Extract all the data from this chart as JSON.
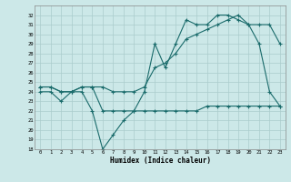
{
  "xlabel": "Humidex (Indice chaleur)",
  "x_ticks": [
    0,
    1,
    2,
    3,
    4,
    5,
    6,
    7,
    8,
    9,
    10,
    11,
    12,
    13,
    14,
    15,
    16,
    17,
    18,
    19,
    20,
    21,
    22,
    23
  ],
  "ylim": [
    18,
    33
  ],
  "xlim": [
    -0.5,
    23.5
  ],
  "yticks": [
    18,
    19,
    20,
    21,
    22,
    23,
    24,
    25,
    26,
    27,
    28,
    29,
    30,
    31,
    32
  ],
  "bg_color": "#cce8e8",
  "grid_color": "#aacccc",
  "line_color": "#1a6b6b",
  "line1_x": [
    0,
    1,
    2,
    3,
    4,
    5,
    6,
    7,
    8,
    9,
    10,
    11,
    12,
    13,
    14,
    15,
    16,
    17,
    18,
    19,
    20,
    21,
    22,
    23
  ],
  "line1_y": [
    24,
    24,
    23,
    24,
    24,
    22,
    18,
    19.5,
    21,
    22,
    24,
    29,
    26.5,
    29,
    31.5,
    31,
    31,
    32,
    32,
    31.5,
    31,
    29,
    24,
    22.5
  ],
  "line2_x": [
    0,
    1,
    2,
    3,
    4,
    5,
    6,
    7,
    8,
    9,
    10,
    11,
    12,
    13,
    14,
    15,
    16,
    17,
    18,
    19,
    20,
    21,
    22,
    23
  ],
  "line2_y": [
    24.5,
    24.5,
    24,
    24,
    24.5,
    24.5,
    24.5,
    24,
    24,
    24,
    24.5,
    26.5,
    27,
    28,
    29.5,
    30,
    30.5,
    31,
    31.5,
    32,
    31,
    31,
    31,
    29
  ],
  "line3_x": [
    0,
    1,
    2,
    3,
    4,
    5,
    6,
    7,
    8,
    9,
    10,
    11,
    12,
    13,
    14,
    15,
    16,
    17,
    18,
    19,
    20,
    21,
    22,
    23
  ],
  "line3_y": [
    24.5,
    24.5,
    24,
    24,
    24.5,
    24.5,
    22,
    22,
    22,
    22,
    22,
    22,
    22,
    22,
    22,
    22,
    22.5,
    22.5,
    22.5,
    22.5,
    22.5,
    22.5,
    22.5,
    22.5
  ]
}
